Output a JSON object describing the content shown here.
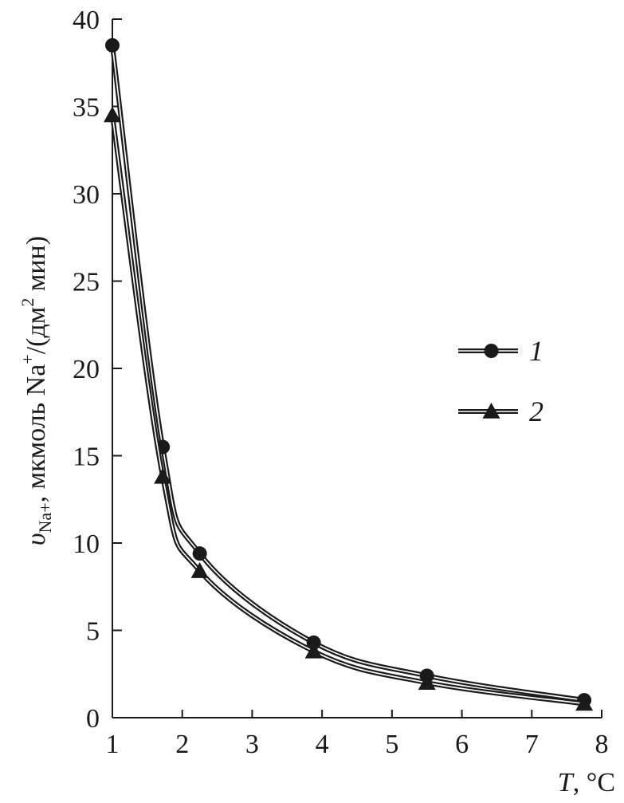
{
  "chart_data": {
    "type": "line",
    "xlabel": "T, °C",
    "ylabel": "υNa+, мкмоль Na+/(дм2 мин)",
    "xlim": [
      1,
      8
    ],
    "ylim": [
      0,
      40
    ],
    "x_ticks": [
      "1",
      "2",
      "3",
      "4",
      "5",
      "6",
      "7",
      "8"
    ],
    "y_ticks": [
      "0",
      "5",
      "10",
      "15",
      "20",
      "25",
      "30",
      "35",
      "40"
    ],
    "grid": false,
    "legend_position": "right",
    "series": [
      {
        "name": "1",
        "marker": "circle",
        "x": [
          1.0,
          1.72,
          2.25,
          3.88,
          5.5,
          7.75
        ],
        "y": [
          38.5,
          15.5,
          9.4,
          4.3,
          2.4,
          1.0
        ]
      },
      {
        "name": "2",
        "marker": "triangle",
        "x": [
          1.0,
          1.72,
          2.25,
          3.88,
          5.5,
          7.75
        ],
        "y": [
          34.5,
          13.8,
          8.4,
          3.8,
          2.0,
          0.8
        ]
      }
    ]
  }
}
